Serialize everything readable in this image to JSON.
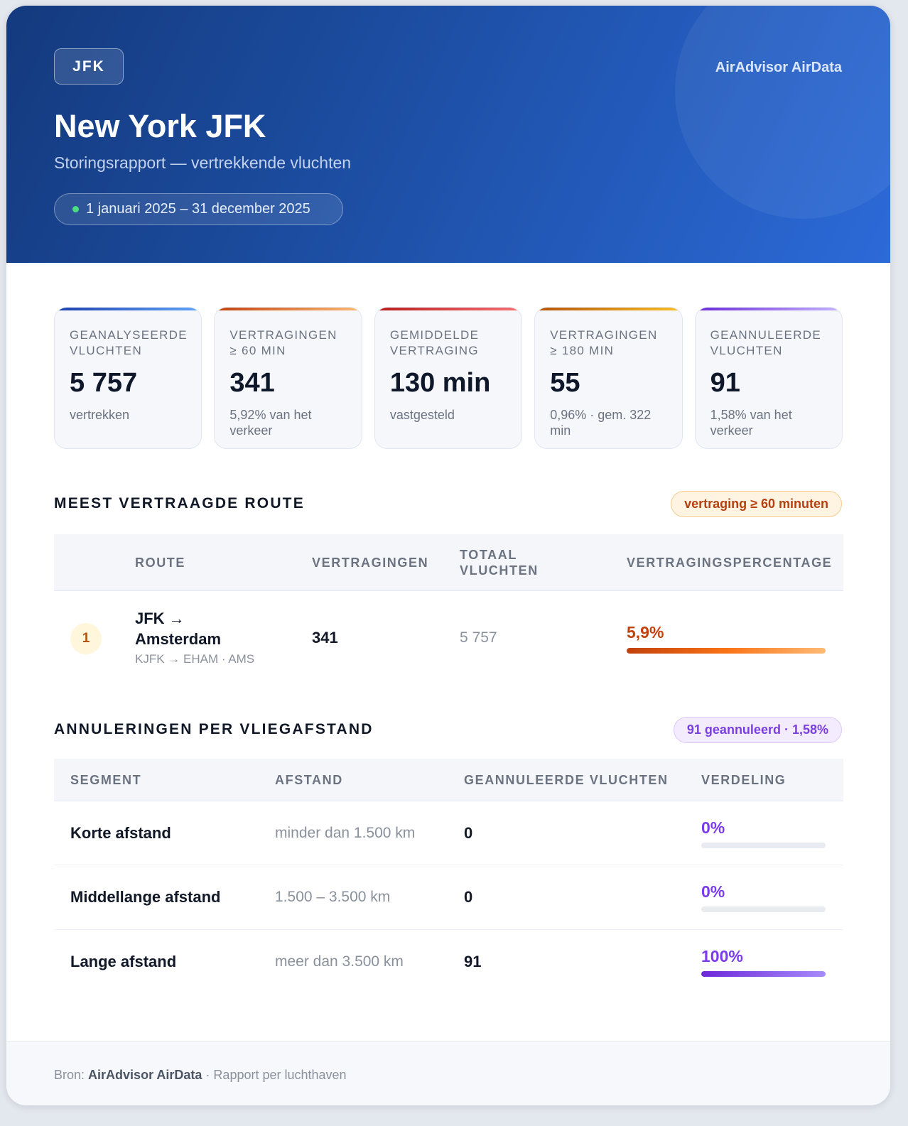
{
  "header": {
    "airport_code": "JFK",
    "brand": "AirAdvisor AirData",
    "title": "New York JFK",
    "subtitle": "Storingsrapport — vertrekkende vluchten",
    "period": "1 januari 2025 – 31 december 2025"
  },
  "kpis": [
    {
      "label": "Geanalyseerde vluchten",
      "value": "5 757",
      "note": "vertrekken",
      "accent_from": "#1e40af",
      "accent_to": "#60a5fa"
    },
    {
      "label": "Vertragingen ≥ 60 min",
      "value": "341",
      "note": "5,92% van het verkeer",
      "accent_from": "#c2410c",
      "accent_to": "#fdba74"
    },
    {
      "label": "Gemiddelde vertraging",
      "value": "130 min",
      "note": "vastgesteld",
      "accent_from": "#b91c1c",
      "accent_to": "#f87171"
    },
    {
      "label": "Vertragingen ≥ 180 min",
      "value": "55",
      "note": "0,96% · gem. 322 min",
      "accent_from": "#b45309",
      "accent_to": "#fbbf24"
    },
    {
      "label": "Geannuleerde vluchten",
      "value": "91",
      "note": "1,58% van het verkeer",
      "accent_from": "#6d28d9",
      "accent_to": "#c4b5fd"
    }
  ],
  "routes_section": {
    "title": "MEEST VERTRAAGDE ROUTE",
    "badge": "vertraging ≥ 60 minuten",
    "headers": {
      "route": "ROUTE",
      "delays": "VERTRAGINGEN",
      "total": "TOTAAL VLUCHTEN",
      "rate": "VERTRAGINGSPERCENTAGE"
    },
    "rows": [
      {
        "rank": "1",
        "route_line1": "JFK →",
        "route_line2": "Amsterdam",
        "codes": "KJFK → EHAM · AMS",
        "delays": "341",
        "total": "5 757",
        "rate": "5,9%",
        "rate_fraction": 1.0
      }
    ]
  },
  "cancellations_section": {
    "title": "ANNULERINGEN PER VLIEGAFSTAND",
    "badge": "91 geannuleerd · 1,58%",
    "headers": {
      "segment": "SEGMENT",
      "distance": "AFSTAND",
      "cancelled": "GEANNULEERDE VLUCHTEN",
      "share": "VERDELING"
    },
    "rows": [
      {
        "segment": "Korte afstand",
        "distance": "minder dan 1.500 km",
        "cancelled": "0",
        "share": "0%",
        "share_fraction": 0
      },
      {
        "segment": "Middellange afstand",
        "distance": "1.500 – 3.500 km",
        "cancelled": "0",
        "share": "0%",
        "share_fraction": 0
      },
      {
        "segment": "Lange afstand",
        "distance": "meer dan 3.500 km",
        "cancelled": "91",
        "share": "100%",
        "share_fraction": 1.0
      }
    ]
  },
  "footer": {
    "source_label": "Bron:",
    "source_name": "AirAdvisor AirData",
    "source_suffix": "· Rapport per luchthaven"
  }
}
